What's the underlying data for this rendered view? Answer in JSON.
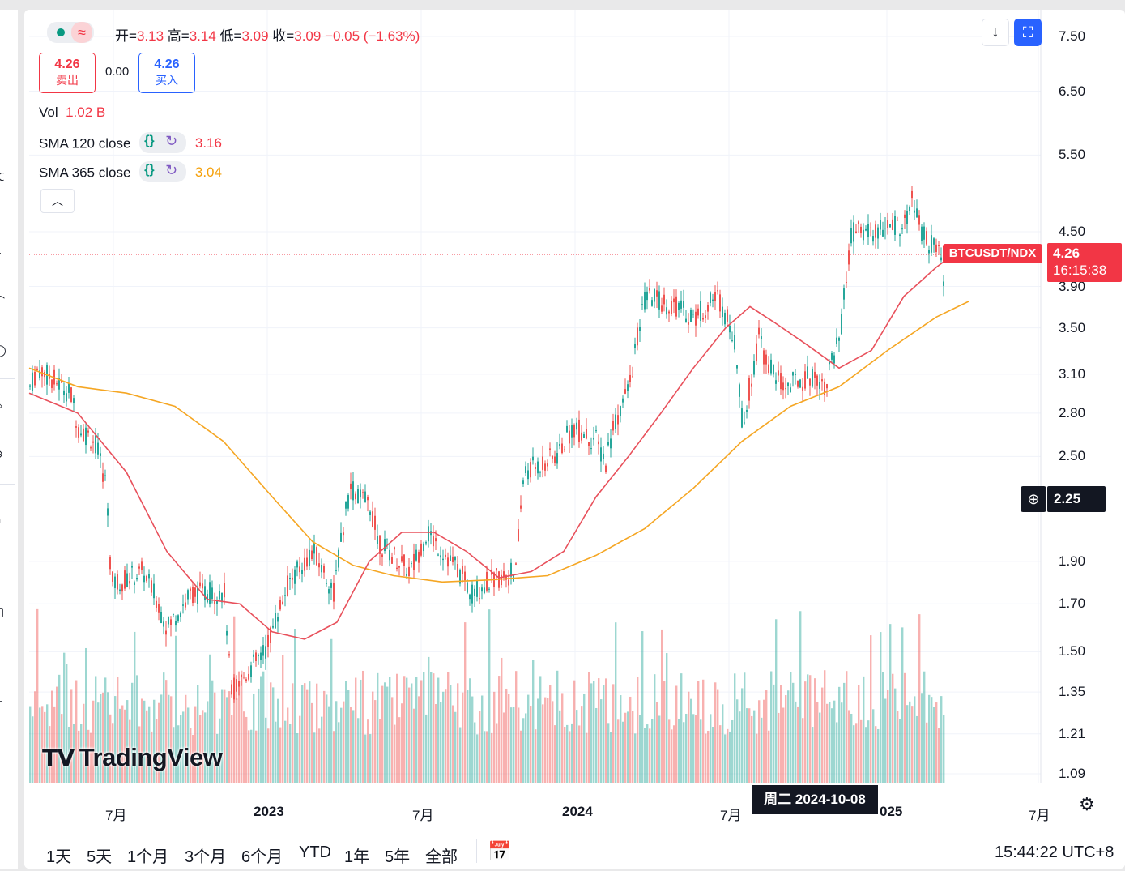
{
  "legend": {
    "open_label": "开=",
    "open": "3.13",
    "high_label": "高=",
    "high": "3.14",
    "low_label": "低=",
    "low": "3.09",
    "close_label": "收=",
    "close": "3.09",
    "change": "−0.05 (−1.63%)"
  },
  "trade": {
    "sell_price": "4.26",
    "sell_label": "卖出",
    "spread": "0.00",
    "buy_price": "4.26",
    "buy_label": "买入"
  },
  "indicators": {
    "vol_label": "Vol",
    "vol_value": "1.02 B",
    "sma120_label": "SMA 120 close",
    "sma120_value": "3.16",
    "sma365_label": "SMA 365 close",
    "sma365_value": "3.04"
  },
  "price_axis": [
    "7.50",
    "6.50",
    "5.50",
    "4.50",
    "3.90",
    "3.50",
    "3.10",
    "2.80",
    "2.50",
    "1.90",
    "1.70",
    "1.50",
    "1.35",
    "1.21",
    "1.09"
  ],
  "current": {
    "symbol": "BTCUSDT/NDX",
    "price": "4.26",
    "countdown": "16:15:38"
  },
  "crosshair": {
    "price": "2.25",
    "date": "周二 2024-10-08"
  },
  "time_axis": [
    "7月",
    "2023",
    "7月",
    "2024",
    "7月",
    "025",
    "7月"
  ],
  "branding": "TradingView",
  "ranges": [
    "1天",
    "5天",
    "1个月",
    "3个月",
    "6个月",
    "YTD",
    "1年",
    "5年",
    "全部"
  ],
  "clock": "15:44:22 UTC+8",
  "colors": {
    "up": "#26a69a",
    "down": "#ef5350",
    "sma120": "#e8505b",
    "sma365": "#f5a623",
    "accent": "#2962ff"
  },
  "chart_data": {
    "type": "candlestick",
    "scale": "log",
    "series": [
      {
        "name": "SMA 120 close",
        "points": [
          [
            0,
            2.95
          ],
          [
            60,
            2.8
          ],
          [
            120,
            2.4
          ],
          [
            170,
            1.95
          ],
          [
            220,
            1.72
          ],
          [
            260,
            1.7
          ],
          [
            300,
            1.58
          ],
          [
            340,
            1.55
          ],
          [
            380,
            1.62
          ],
          [
            420,
            1.9
          ],
          [
            460,
            2.05
          ],
          [
            500,
            2.05
          ],
          [
            540,
            1.95
          ],
          [
            580,
            1.82
          ],
          [
            620,
            1.85
          ],
          [
            660,
            1.95
          ],
          [
            700,
            2.25
          ],
          [
            740,
            2.5
          ],
          [
            780,
            2.8
          ],
          [
            820,
            3.15
          ],
          [
            860,
            3.5
          ],
          [
            890,
            3.7
          ],
          [
            920,
            3.55
          ],
          [
            960,
            3.35
          ],
          [
            1000,
            3.15
          ],
          [
            1040,
            3.3
          ],
          [
            1080,
            3.8
          ],
          [
            1120,
            4.1
          ],
          [
            1150,
            4.3
          ]
        ]
      },
      {
        "name": "SMA 365 close",
        "points": [
          [
            0,
            3.15
          ],
          [
            60,
            3.0
          ],
          [
            120,
            2.95
          ],
          [
            180,
            2.85
          ],
          [
            240,
            2.6
          ],
          [
            300,
            2.25
          ],
          [
            350,
            2.0
          ],
          [
            400,
            1.88
          ],
          [
            450,
            1.83
          ],
          [
            510,
            1.8
          ],
          [
            570,
            1.81
          ],
          [
            640,
            1.83
          ],
          [
            700,
            1.93
          ],
          [
            760,
            2.07
          ],
          [
            820,
            2.3
          ],
          [
            880,
            2.6
          ],
          [
            940,
            2.85
          ],
          [
            1000,
            3.0
          ],
          [
            1060,
            3.3
          ],
          [
            1120,
            3.6
          ],
          [
            1160,
            3.75
          ]
        ]
      }
    ],
    "last_candle": {
      "open": 3.13,
      "high": 3.14,
      "low": 3.09,
      "close": 3.09
    }
  }
}
